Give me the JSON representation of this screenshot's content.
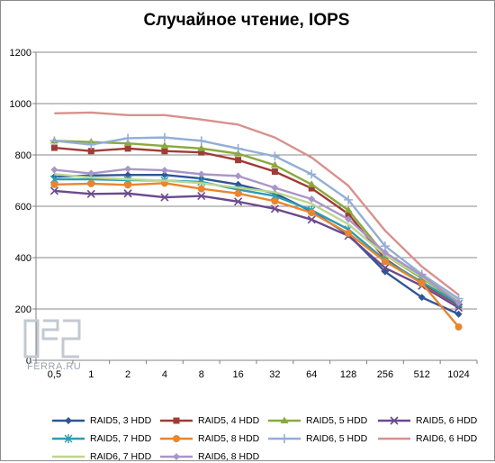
{
  "chart_data": {
    "type": "line",
    "title": "Случайное чтение, IOPS",
    "xlabel": "",
    "ylabel": "",
    "categories": [
      "0,5",
      "1",
      "2",
      "4",
      "8",
      "16",
      "32",
      "64",
      "128",
      "256",
      "512",
      "1024"
    ],
    "ylim": [
      0,
      1200
    ],
    "yticks": [
      0,
      200,
      400,
      600,
      800,
      1000,
      1200
    ],
    "grid": true,
    "legend_position": "bottom",
    "series": [
      {
        "name": "RAID5, 3 HDD",
        "color": "#2e5597",
        "marker": "diamond",
        "values": [
          715,
          720,
          722,
          722,
          708,
          685,
          650,
          580,
          490,
          345,
          245,
          180
        ]
      },
      {
        "name": "RAID5, 4 HDD",
        "color": "#a13b36",
        "marker": "square",
        "values": [
          828,
          815,
          825,
          815,
          810,
          780,
          735,
          670,
          570,
          395,
          300,
          215
        ]
      },
      {
        "name": "RAID5, 5 HDD",
        "color": "#8aa93c",
        "marker": "triangle",
        "values": [
          855,
          850,
          845,
          835,
          825,
          805,
          760,
          685,
          585,
          410,
          320,
          225
        ]
      },
      {
        "name": "RAID5, 6 HDD",
        "color": "#6a4a8d",
        "marker": "x",
        "values": [
          660,
          648,
          650,
          635,
          640,
          618,
          590,
          548,
          485,
          360,
          290,
          205
        ]
      },
      {
        "name": "RAID5, 7 HDD",
        "color": "#2e9cb0",
        "marker": "star",
        "values": [
          705,
          705,
          702,
          700,
          695,
          665,
          640,
          585,
          510,
          390,
          305,
          220
        ]
      },
      {
        "name": "RAID5, 8 HDD",
        "color": "#e9852f",
        "marker": "circle",
        "values": [
          685,
          688,
          683,
          690,
          668,
          650,
          620,
          575,
          495,
          385,
          300,
          130
        ]
      },
      {
        "name": "RAID6, 5 HDD",
        "color": "#93aed6",
        "marker": "plus",
        "values": [
          855,
          840,
          865,
          868,
          855,
          825,
          795,
          725,
          625,
          445,
          335,
          240
        ]
      },
      {
        "name": "RAID6, 6 HDD",
        "color": "#d8918d",
        "marker": "none",
        "values": [
          962,
          965,
          955,
          955,
          938,
          918,
          868,
          790,
          680,
          505,
          365,
          255
        ]
      },
      {
        "name": "RAID6, 7 HDD",
        "color": "#bcd690",
        "marker": "none",
        "values": [
          725,
          712,
          705,
          700,
          690,
          672,
          655,
          610,
          530,
          410,
          325,
          230
        ]
      },
      {
        "name": "RAID6, 8 HDD",
        "color": "#a996c9",
        "marker": "diamond",
        "values": [
          742,
          728,
          745,
          740,
          725,
          718,
          672,
          628,
          550,
          420,
          330,
          225
        ]
      }
    ]
  },
  "watermark": "FERRA.RU"
}
